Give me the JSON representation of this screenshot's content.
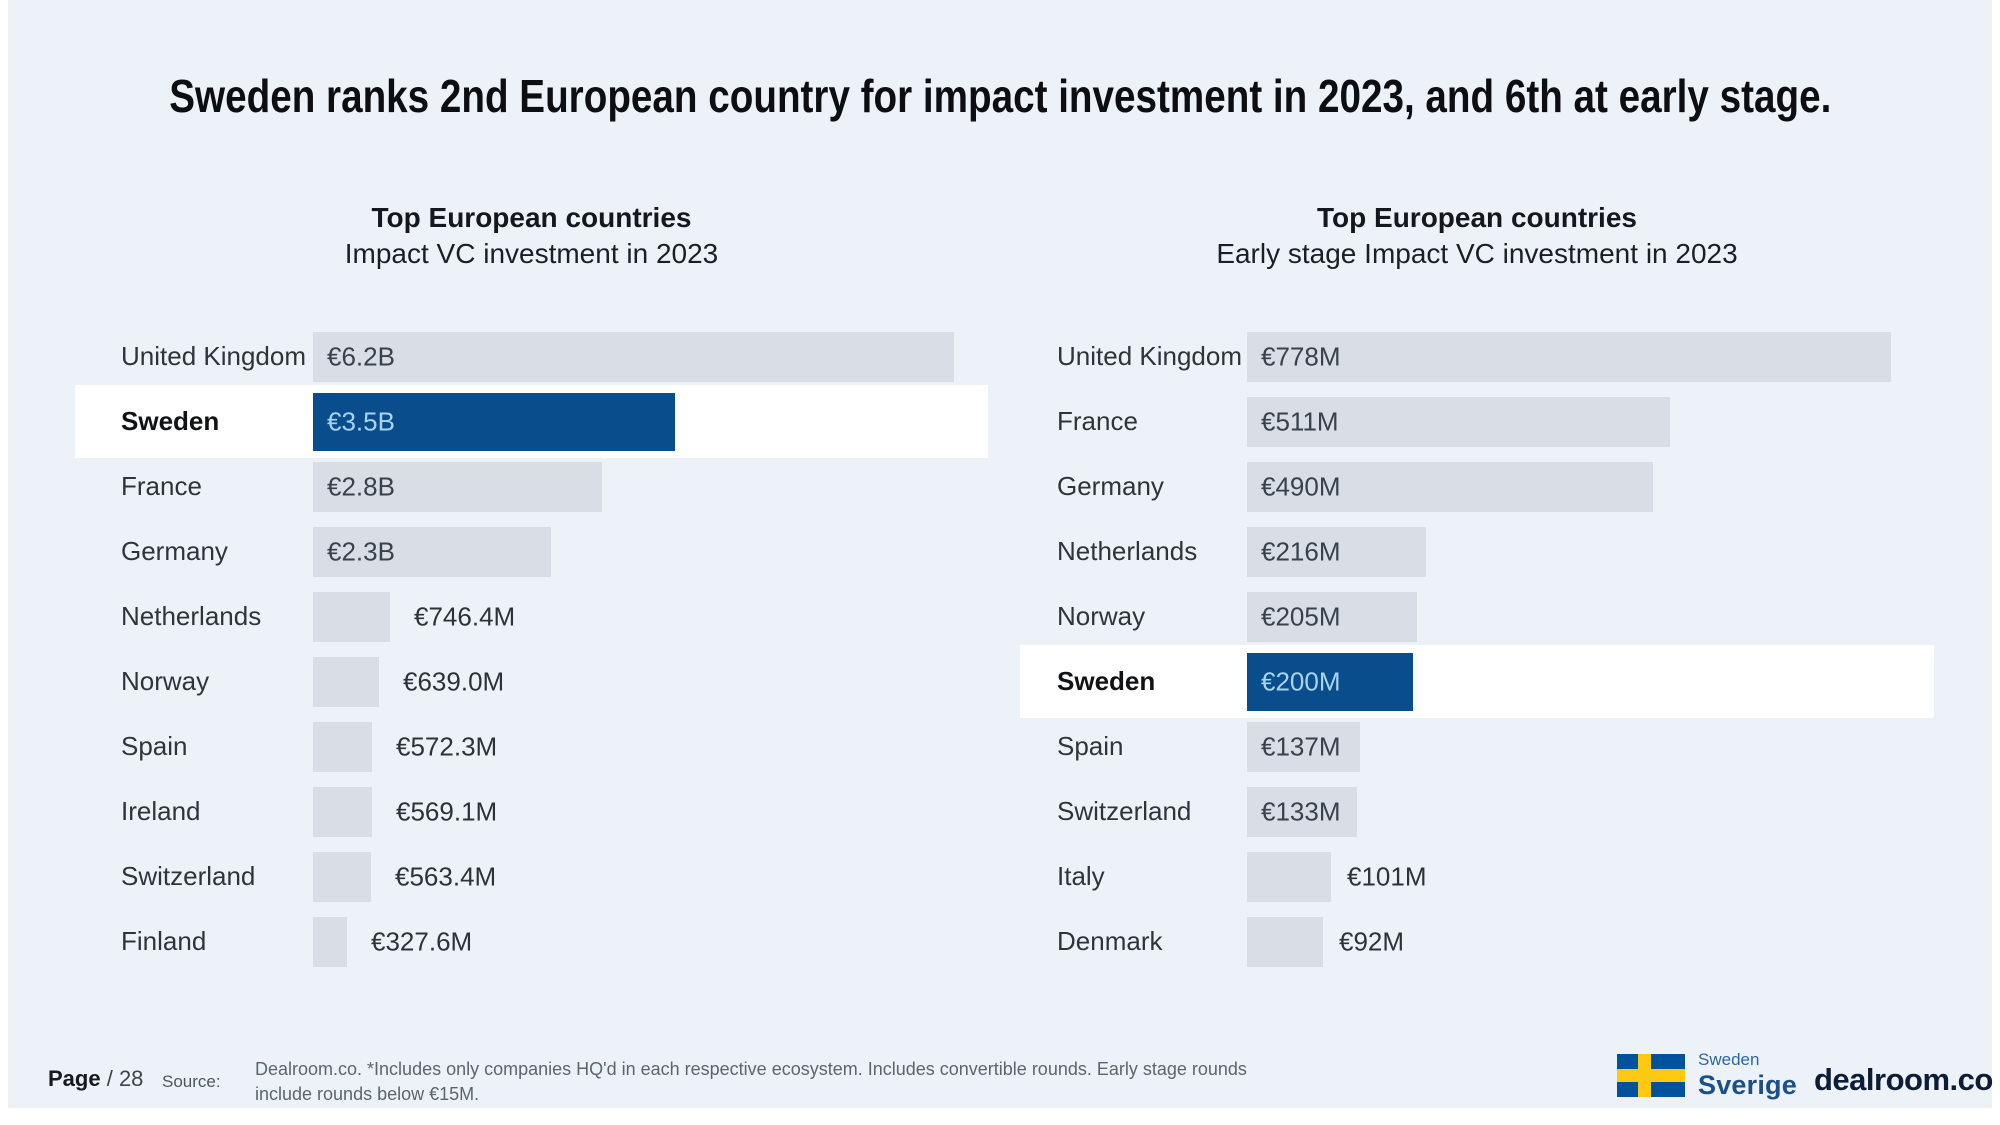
{
  "title": "Sweden ranks 2nd European country for impact investment in 2023, and 6th at early stage.",
  "chart_data": [
    {
      "type": "bar",
      "orientation": "horizontal",
      "title": "Top European countries",
      "subtitle": "Impact VC investment in 2023",
      "unit": "EUR",
      "categories": [
        "United Kingdom",
        "Sweden",
        "France",
        "Germany",
        "Netherlands",
        "Norway",
        "Spain",
        "Ireland",
        "Switzerland",
        "Finland"
      ],
      "values_millions": [
        6200,
        3500,
        2800,
        2300,
        746.4,
        639.0,
        572.3,
        569.1,
        563.4,
        327.6
      ],
      "value_labels": [
        "€6.2B",
        "€3.5B",
        "€2.8B",
        "€2.3B",
        "€746.4M",
        "€639.0M",
        "€572.3M",
        "€569.1M",
        "€563.4M",
        "€327.6M"
      ],
      "label_placement": [
        "inside",
        "inside",
        "inside",
        "inside",
        "outside",
        "outside",
        "outside",
        "outside",
        "outside",
        "outside"
      ],
      "highlighted_category": "Sweden",
      "xlim_millions": [
        0,
        6200
      ],
      "grid": false,
      "legend": false
    },
    {
      "type": "bar",
      "orientation": "horizontal",
      "title": "Top European countries",
      "subtitle": "Early stage Impact VC investment in 2023",
      "unit": "EUR",
      "categories": [
        "United Kingdom",
        "France",
        "Germany",
        "Netherlands",
        "Norway",
        "Sweden",
        "Spain",
        "Switzerland",
        "Italy",
        "Denmark"
      ],
      "values_millions": [
        778,
        511,
        490,
        216,
        205,
        200,
        137,
        133,
        101,
        92
      ],
      "value_labels": [
        "€778M",
        "€511M",
        "€490M",
        "€216M",
        "€205M",
        "€200M",
        "€137M",
        "€133M",
        "€101M",
        "€92M"
      ],
      "label_placement": [
        "inside",
        "inside",
        "inside",
        "inside",
        "inside",
        "inside",
        "inside",
        "inside",
        "outside",
        "outside"
      ],
      "highlighted_category": "Sweden",
      "xlim_millions": [
        0,
        778
      ],
      "grid": false,
      "legend": false
    }
  ],
  "footer": {
    "page_label": "Page",
    "page_number": "/ 28",
    "source_label": "Source:",
    "source_note": "Dealroom.co.  *Includes only companies HQ'd in each respective ecosystem. Includes convertible rounds. Early stage rounds include rounds below €15M."
  },
  "logos": {
    "sweden_small": "Sweden",
    "sweden_large": "Sverige",
    "dealroom": "dealroom.co"
  },
  "colors": {
    "background": "#edf2f9",
    "bar_grey": "#d8dde6",
    "accent_blue": "#0a4d8c",
    "value_on_accent": "#a8d4f0",
    "flag_blue": "#00529c",
    "flag_yellow": "#fdc913",
    "dealroom_navy": "#0c1d35"
  }
}
